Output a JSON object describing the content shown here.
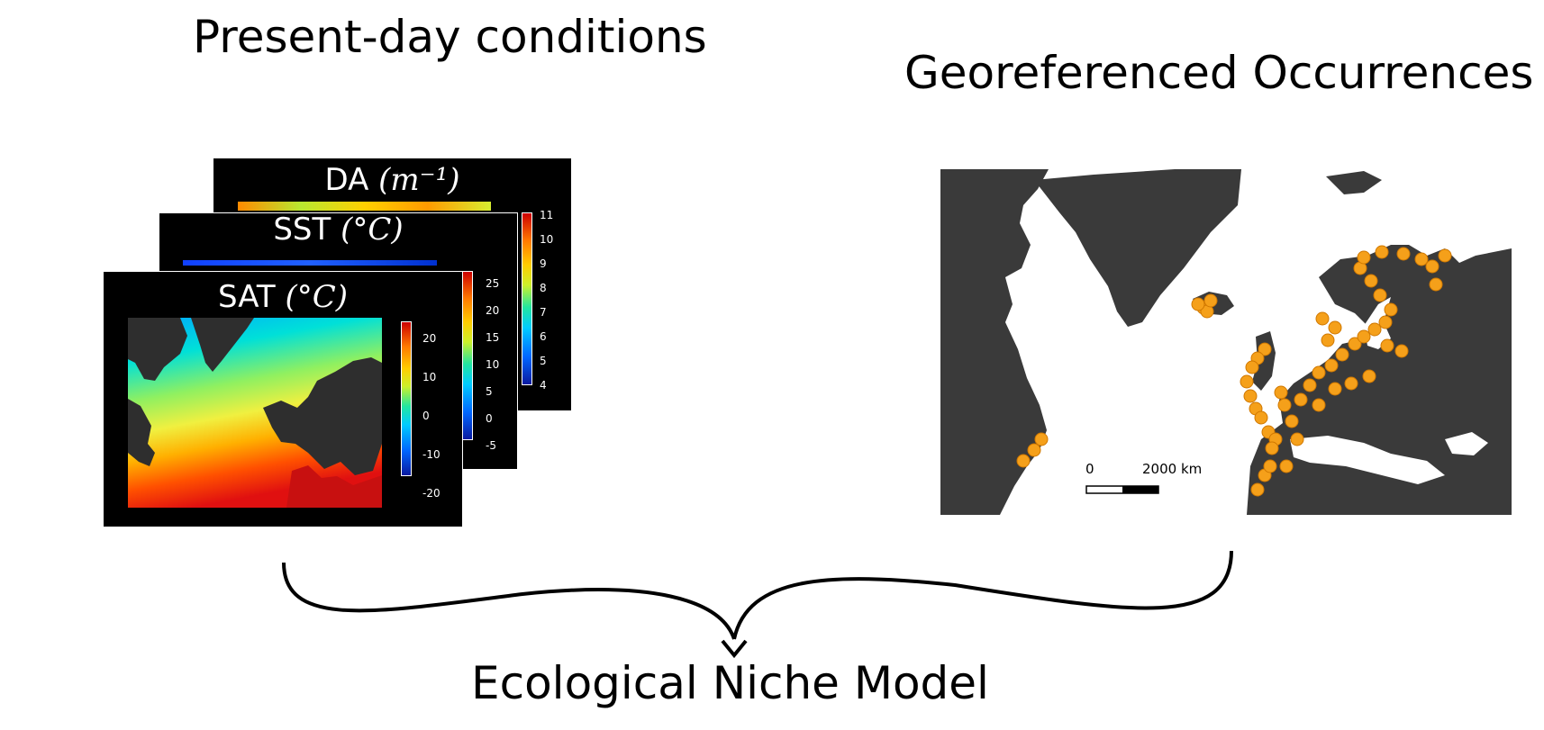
{
  "titles": {
    "left": "Present-day conditions",
    "right": "Georeferenced Occurrences",
    "bottom": "Ecological Niche Model"
  },
  "panels": {
    "da": {
      "label": "DA",
      "unit_text": "(m⁻¹)",
      "ticks": [
        "11",
        "10",
        "9",
        "8",
        "7",
        "6",
        "5",
        "4"
      ]
    },
    "sst": {
      "label": "SST",
      "unit_text": "(°C)",
      "ticks": [
        "25",
        "20",
        "15",
        "10",
        "5",
        "0",
        "-5"
      ]
    },
    "sat": {
      "label": "SAT",
      "unit_text": "(°C)",
      "ticks": [
        "20",
        "10",
        "0",
        "-10",
        "-20"
      ]
    }
  },
  "map": {
    "land_color": "#3a3a3a",
    "sea_color": "#ffffff",
    "point_color": "#f5a01a",
    "scalebar": {
      "start": "0",
      "end": "2000 km"
    }
  }
}
